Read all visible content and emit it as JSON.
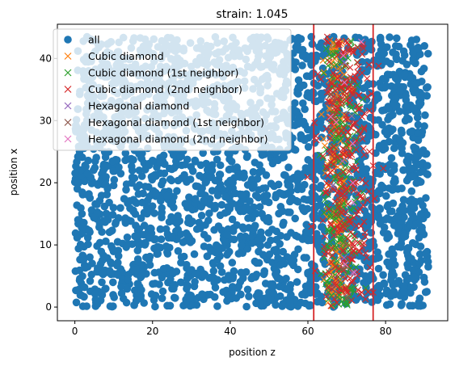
{
  "chart_data": {
    "type": "scatter",
    "title": "strain: 1.045",
    "xlabel": "position z",
    "ylabel": "position x",
    "xlim": [
      -4.5,
      96
    ],
    "ylim": [
      -2.2,
      45.5
    ],
    "xticks": [
      0,
      20,
      40,
      60,
      80
    ],
    "yticks": [
      0,
      10,
      20,
      30,
      40
    ],
    "legend_position": "top-left",
    "grid": false,
    "vlines": [
      {
        "x": 61.5,
        "color": "#d62728"
      },
      {
        "x": 76.8,
        "color": "#d62728"
      }
    ],
    "series": [
      {
        "name": "all",
        "marker": "circle",
        "color": "#1f77b4",
        "x_range": [
          0,
          91
        ],
        "y_range": [
          0,
          43.5
        ],
        "count": 2600
      },
      {
        "name": "Cubic diamond",
        "marker": "x",
        "color": "#ff7f0e",
        "x_range": [
          63,
          72
        ],
        "y_range": [
          0,
          43
        ],
        "count": 180
      },
      {
        "name": "Cubic diamond (1st neighbor)",
        "marker": "x",
        "color": "#2ca02c",
        "x_range": [
          61.5,
          76
        ],
        "y_range": [
          0,
          43
        ],
        "count": 240
      },
      {
        "name": "Cubic diamond (2nd neighbor)",
        "marker": "x",
        "color": "#d62728",
        "x_range": [
          59,
          80
        ],
        "y_range": [
          0,
          43.5
        ],
        "count": 320
      },
      {
        "name": "Hexagonal diamond",
        "marker": "x",
        "color": "#9467bd",
        "x_range": [
          64,
          74
        ],
        "y_range": [
          0,
          43.5
        ],
        "count": 6
      },
      {
        "name": "Hexagonal diamond (1st neighbor)",
        "marker": "x",
        "color": "#8c564b",
        "x_range": [
          63,
          74
        ],
        "y_range": [
          0,
          43.5
        ],
        "count": 8
      },
      {
        "name": "Hexagonal diamond (2nd neighbor)",
        "marker": "x",
        "color": "#e377c2",
        "x_range": [
          64,
          75
        ],
        "y_range": [
          0,
          43.5
        ],
        "count": 10
      }
    ]
  }
}
